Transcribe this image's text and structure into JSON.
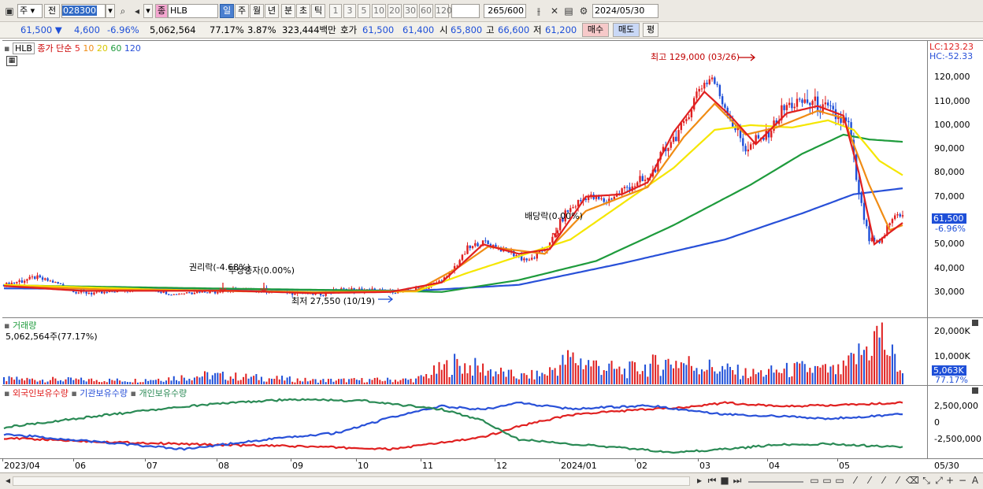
{
  "toolbar": {
    "market": "주",
    "jeon": "전",
    "code": "028300",
    "kind": "종",
    "name": "HLB",
    "periods": [
      "일",
      "주",
      "월",
      "년",
      "분",
      "초",
      "틱"
    ],
    "active_period": "일",
    "nums": [
      "1",
      "3",
      "5",
      "10",
      "20",
      "30",
      "60",
      "120"
    ],
    "count": "265",
    "count_total": "/600",
    "date": "2024/05/30"
  },
  "quote": {
    "price": "61,500",
    "arrow": "▼",
    "change": "4,600",
    "pct": "-6.96%",
    "volume": "5,062,564",
    "vol_ratio": "77.17%",
    "turnover": "3.87%",
    "amount": "323,444백만",
    "hoga_label": "호가",
    "ask": "61,500",
    "bid": "61,400",
    "open_label": "시",
    "open": "65,800",
    "high_label": "고",
    "high": "66,600",
    "low_label": "저",
    "low": "61,200",
    "buy_btn": "매수",
    "sell_btn": "매도",
    "eval_btn": "평"
  },
  "colors": {
    "ma5": "#e02020",
    "ma10": "#f08c14",
    "ma20": "#f5e600",
    "ma60": "#1e9b3c",
    "ma120": "#2850d8",
    "up": "#e02020",
    "down": "#1e4fd8",
    "foreign": "#e02020",
    "inst": "#2850d8",
    "indiv": "#2a8a55"
  },
  "price_pane": {
    "ticker": "HLB",
    "legend_label": "종가 단순",
    "ma_periods": [
      "5",
      "10",
      "20",
      "60",
      "120"
    ],
    "lc": "LC:123.23",
    "hc": "HC:-52.33",
    "y_ticks": [
      "120,000",
      "110,000",
      "100,000",
      "90,000",
      "80,000",
      "70,000",
      "60,000",
      "50,000",
      "40,000",
      "30,000"
    ],
    "last_price": "61,500",
    "last_pct": "-6.96%"
  },
  "volume_pane": {
    "title": "거래량",
    "info": "5,062,564주(77.17%)",
    "y_ticks": [
      "20,000K",
      "10,000K"
    ],
    "last": "5,063K",
    "last_pct": "77.17%"
  },
  "holders_pane": {
    "legends": [
      "외국인보유수량",
      "기관보유수량",
      "개인보유수량"
    ],
    "y_ticks": [
      "2,500,000",
      "0",
      "-2,500,000"
    ]
  },
  "x_labels": [
    "2023/04",
    "06",
    "07",
    "08",
    "09",
    "10",
    "11",
    "12",
    "2024/01",
    "02",
    "03",
    "04",
    "05",
    "05/30"
  ],
  "chart_data": {
    "type": "candlestick",
    "ylim": [
      22000,
      133000
    ],
    "annotations": [
      {
        "text": "최고 129,000 (03/26)",
        "value": 129000,
        "date": "2024/03/26"
      },
      {
        "text": "최저 27,550 (10/19)",
        "value": 27550,
        "date": "2023/10/19"
      },
      {
        "text": "권리락(-4.68%)",
        "date": "2023/08"
      },
      {
        "text": "무상증자(0.00%)",
        "date": "2023/08"
      },
      {
        "text": "배당락(0.00%)",
        "date": "2023/12"
      }
    ],
    "price_anchors": [
      [
        0,
        33000
      ],
      [
        12,
        36000
      ],
      [
        20,
        34000
      ],
      [
        28,
        30000
      ],
      [
        38,
        29500
      ],
      [
        48,
        31000
      ],
      [
        58,
        31000
      ],
      [
        66,
        29000
      ],
      [
        72,
        30000
      ],
      [
        84,
        30500
      ],
      [
        96,
        31000
      ],
      [
        108,
        30500
      ],
      [
        116,
        29500
      ],
      [
        122,
        29000
      ],
      [
        132,
        31000
      ],
      [
        144,
        30500
      ],
      [
        154,
        30000
      ],
      [
        164,
        32000
      ],
      [
        172,
        36000
      ],
      [
        180,
        48000
      ],
      [
        186,
        51000
      ],
      [
        196,
        47000
      ],
      [
        204,
        43000
      ],
      [
        212,
        50000
      ],
      [
        218,
        63000
      ],
      [
        226,
        70000
      ],
      [
        234,
        68000
      ],
      [
        242,
        74000
      ],
      [
        250,
        77000
      ],
      [
        258,
        92000
      ],
      [
        264,
        100000
      ],
      [
        270,
        116000
      ],
      [
        275,
        120000
      ],
      [
        282,
        103000
      ],
      [
        288,
        90000
      ],
      [
        296,
        96000
      ],
      [
        304,
        108000
      ],
      [
        312,
        110000
      ],
      [
        320,
        106000
      ],
      [
        328,
        100000
      ],
      [
        332,
        70000
      ],
      [
        336,
        52000
      ],
      [
        340,
        50000
      ],
      [
        344,
        59000
      ],
      [
        347,
        63500
      ],
      [
        349,
        61500
      ]
    ],
    "series": [
      {
        "name": "5",
        "anchors": [
          [
            0,
            32500
          ],
          [
            30,
            30500
          ],
          [
            60,
            30500
          ],
          [
            90,
            30500
          ],
          [
            120,
            29500
          ],
          [
            150,
            30000
          ],
          [
            170,
            34000
          ],
          [
            186,
            50000
          ],
          [
            200,
            46000
          ],
          [
            212,
            48000
          ],
          [
            226,
            70000
          ],
          [
            240,
            71000
          ],
          [
            250,
            76000
          ],
          [
            260,
            97000
          ],
          [
            272,
            114000
          ],
          [
            282,
            104000
          ],
          [
            292,
            92000
          ],
          [
            304,
            105000
          ],
          [
            316,
            108000
          ],
          [
            326,
            104000
          ],
          [
            332,
            80000
          ],
          [
            338,
            50000
          ],
          [
            344,
            55000
          ],
          [
            349,
            59000
          ]
        ]
      },
      {
        "name": "10",
        "anchors": [
          [
            0,
            32500
          ],
          [
            40,
            31000
          ],
          [
            80,
            30500
          ],
          [
            120,
            29800
          ],
          [
            160,
            30500
          ],
          [
            176,
            40000
          ],
          [
            188,
            49000
          ],
          [
            210,
            46000
          ],
          [
            226,
            64000
          ],
          [
            250,
            74000
          ],
          [
            264,
            95000
          ],
          [
            276,
            109000
          ],
          [
            288,
            96000
          ],
          [
            300,
            99000
          ],
          [
            316,
            106000
          ],
          [
            326,
            103000
          ],
          [
            336,
            75000
          ],
          [
            344,
            56000
          ],
          [
            349,
            58000
          ]
        ]
      },
      {
        "name": "20",
        "anchors": [
          [
            0,
            33000
          ],
          [
            60,
            31000
          ],
          [
            120,
            30000
          ],
          [
            160,
            30200
          ],
          [
            180,
            38000
          ],
          [
            200,
            45000
          ],
          [
            220,
            52000
          ],
          [
            240,
            67000
          ],
          [
            260,
            82000
          ],
          [
            276,
            98000
          ],
          [
            290,
            100000
          ],
          [
            306,
            99000
          ],
          [
            320,
            102000
          ],
          [
            330,
            98000
          ],
          [
            340,
            85000
          ],
          [
            349,
            79000
          ]
        ]
      },
      {
        "name": "60",
        "anchors": [
          [
            0,
            32800
          ],
          [
            80,
            31500
          ],
          [
            150,
            30500
          ],
          [
            170,
            30000
          ],
          [
            200,
            35000
          ],
          [
            230,
            43000
          ],
          [
            260,
            58000
          ],
          [
            290,
            75000
          ],
          [
            310,
            88000
          ],
          [
            326,
            96000
          ],
          [
            336,
            94000
          ],
          [
            349,
            93000
          ]
        ]
      },
      {
        "name": "120",
        "anchors": [
          [
            0,
            31500
          ],
          [
            100,
            31000
          ],
          [
            160,
            30500
          ],
          [
            200,
            33000
          ],
          [
            240,
            42000
          ],
          [
            280,
            52000
          ],
          [
            310,
            63000
          ],
          [
            330,
            71000
          ],
          [
            349,
            73500
          ]
        ]
      }
    ],
    "volume_anchors": [
      [
        0,
        2000
      ],
      [
        50,
        1500
      ],
      [
        80,
        3500
      ],
      [
        120,
        1500
      ],
      [
        160,
        1800
      ],
      [
        175,
        8000
      ],
      [
        186,
        6000
      ],
      [
        200,
        3000
      ],
      [
        210,
        4000
      ],
      [
        220,
        10000
      ],
      [
        240,
        5000
      ],
      [
        260,
        9000
      ],
      [
        272,
        7000
      ],
      [
        290,
        4000
      ],
      [
        310,
        6000
      ],
      [
        325,
        5000
      ],
      [
        335,
        14000
      ],
      [
        340,
        20000
      ],
      [
        344,
        12000
      ],
      [
        349,
        5063
      ]
    ],
    "holders": [
      {
        "name": "외국인보유수량",
        "anchors": [
          [
            0,
            -2300000
          ],
          [
            40,
            -2900000
          ],
          [
            80,
            -3300000
          ],
          [
            120,
            -3600000
          ],
          [
            150,
            -4000000
          ],
          [
            170,
            -3000000
          ],
          [
            186,
            -2200000
          ],
          [
            200,
            -500000
          ],
          [
            220,
            1200000
          ],
          [
            240,
            1800000
          ],
          [
            260,
            2200000
          ],
          [
            280,
            3000000
          ],
          [
            300,
            2500000
          ],
          [
            320,
            2600000
          ],
          [
            349,
            3000000
          ]
        ]
      },
      {
        "name": "기관보유수량",
        "anchors": [
          [
            0,
            -1700000
          ],
          [
            40,
            -3000000
          ],
          [
            70,
            -4000000
          ],
          [
            100,
            -2600000
          ],
          [
            130,
            -1500000
          ],
          [
            150,
            800000
          ],
          [
            170,
            2500000
          ],
          [
            186,
            2000000
          ],
          [
            200,
            3000000
          ],
          [
            220,
            2100000
          ],
          [
            250,
            2600000
          ],
          [
            280,
            1300000
          ],
          [
            300,
            1000000
          ],
          [
            320,
            600000
          ],
          [
            349,
            1300000
          ]
        ]
      },
      {
        "name": "개인보유수량",
        "anchors": [
          [
            0,
            -700000
          ],
          [
            40,
            1200000
          ],
          [
            80,
            2800000
          ],
          [
            110,
            3500000
          ],
          [
            140,
            3300000
          ],
          [
            170,
            2000000
          ],
          [
            186,
            300000
          ],
          [
            200,
            -2500000
          ],
          [
            220,
            -3200000
          ],
          [
            240,
            -3800000
          ],
          [
            260,
            -4500000
          ],
          [
            280,
            -4000000
          ],
          [
            300,
            -3300000
          ],
          [
            320,
            -3200000
          ],
          [
            349,
            -3700000
          ]
        ]
      }
    ]
  }
}
